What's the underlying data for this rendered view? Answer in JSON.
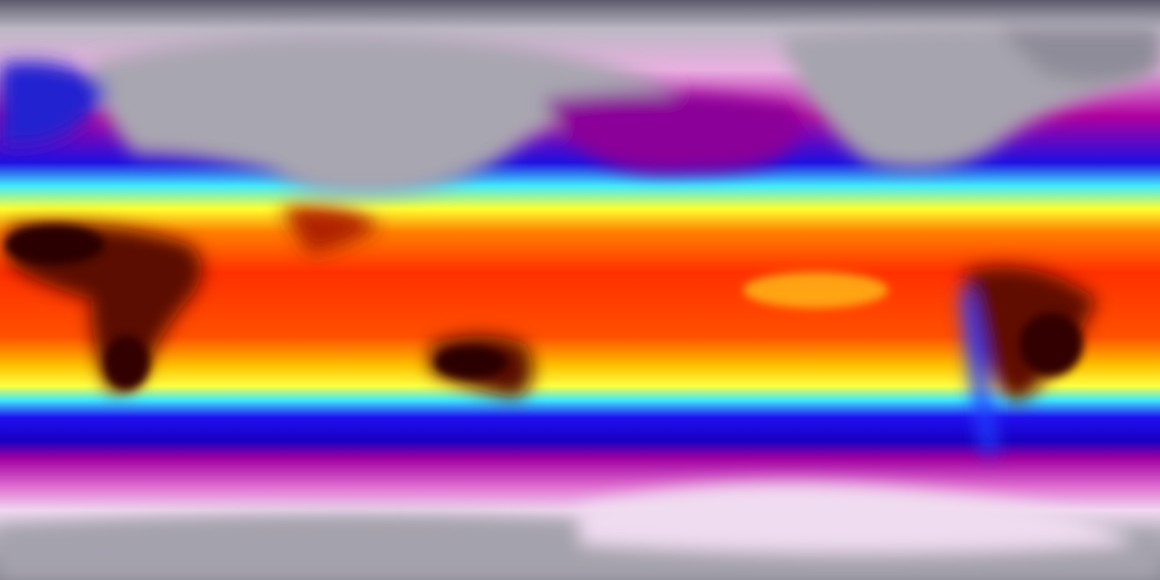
{
  "map": {
    "projection": "equirectangular",
    "variable": "temperature",
    "colormap": [
      "#5e5c6c",
      "#9a98a4",
      "#f2e6f2",
      "#e070d0",
      "#a0009a",
      "#2000e0",
      "#0040ff",
      "#40e0ff",
      "#ffff40",
      "#ffb000",
      "#ff4000",
      "#e01000",
      "#400000"
    ],
    "colors": {
      "polar": "#8e8c98",
      "cold": "#b0009e",
      "cool": "#2010e0",
      "mild": "#40e8ff",
      "warm": "#ffff30",
      "hot": "#ff4000",
      "hottest": "#300000"
    }
  }
}
